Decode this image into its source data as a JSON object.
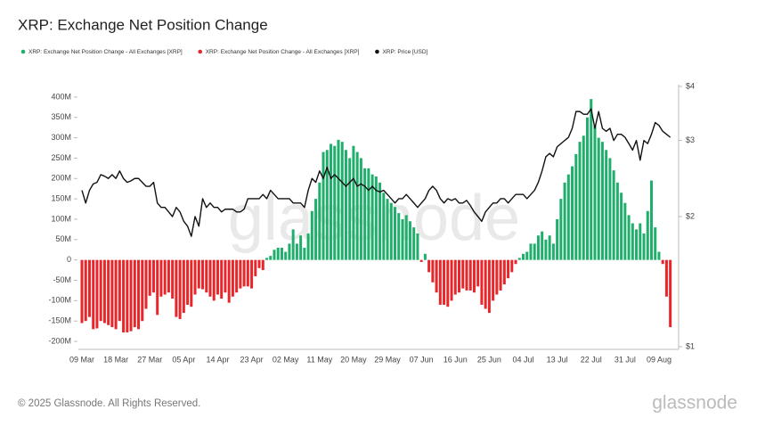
{
  "chart_data": {
    "type": "bar",
    "title": "XRP: Exchange Net Position Change",
    "watermark": "glassnode",
    "copyright": "© 2025 Glassnode. All Rights Reserved.",
    "logo": "glassnode",
    "categories": [
      "09 Mar",
      null,
      null,
      null,
      null,
      null,
      null,
      null,
      null,
      "18 Mar",
      null,
      null,
      null,
      null,
      null,
      null,
      null,
      null,
      "27 Mar",
      null,
      null,
      null,
      null,
      null,
      null,
      null,
      null,
      "05 Apr",
      null,
      null,
      null,
      null,
      null,
      null,
      null,
      null,
      "14 Apr",
      null,
      null,
      null,
      null,
      null,
      null,
      null,
      null,
      "23 Apr",
      null,
      null,
      null,
      null,
      null,
      null,
      null,
      null,
      "02 May",
      null,
      null,
      null,
      null,
      null,
      null,
      null,
      null,
      "11 May",
      null,
      null,
      null,
      null,
      null,
      null,
      null,
      null,
      "20 May",
      null,
      null,
      null,
      null,
      null,
      null,
      null,
      null,
      "29 May",
      null,
      null,
      null,
      null,
      null,
      null,
      null,
      null,
      "07 Jun",
      null,
      null,
      null,
      null,
      null,
      null,
      null,
      null,
      "16 Jun",
      null,
      null,
      null,
      null,
      null,
      null,
      null,
      null,
      "25 Jun",
      null,
      null,
      null,
      null,
      null,
      null,
      null,
      null,
      "04 Jul",
      null,
      null,
      null,
      null,
      null,
      null,
      null,
      null,
      "13 Jul",
      null,
      null,
      null,
      null,
      null,
      null,
      null,
      null,
      "22 Jul",
      null,
      null,
      null,
      null,
      null,
      null,
      null,
      null,
      "31 Jul",
      null,
      null,
      null,
      null,
      null,
      null,
      null,
      null,
      "09 Aug",
      null,
      null,
      null
    ],
    "series": [
      {
        "name": "XRP: Exchange Net Position Change - All Exchanges [XRP]",
        "color": "#1fae6c",
        "type": "bar",
        "values": [
          null,
          null,
          null,
          null,
          null,
          null,
          null,
          null,
          null,
          null,
          null,
          null,
          null,
          null,
          null,
          null,
          null,
          null,
          null,
          null,
          null,
          null,
          null,
          null,
          null,
          null,
          null,
          null,
          null,
          null,
          null,
          null,
          null,
          null,
          null,
          null,
          null,
          null,
          null,
          null,
          null,
          null,
          null,
          null,
          null,
          null,
          null,
          null,
          null,
          5,
          10,
          25,
          30,
          30,
          20,
          40,
          75,
          40,
          60,
          30,
          65,
          120,
          150,
          190,
          265,
          270,
          285,
          280,
          295,
          290,
          270,
          250,
          280,
          265,
          250,
          225,
          225,
          210,
          205,
          190,
          165,
          150,
          140,
          130,
          115,
          100,
          110,
          95,
          80,
          65,
          null,
          15,
          null,
          null,
          null,
          null,
          null,
          null,
          null,
          null,
          null,
          null,
          null,
          null,
          null,
          null,
          null,
          null,
          null,
          null,
          null,
          null,
          null,
          null,
          null,
          null,
          5,
          15,
          20,
          40,
          40,
          60,
          70,
          50,
          60,
          40,
          100,
          150,
          190,
          210,
          230,
          260,
          290,
          305,
          350,
          395,
          330,
          300,
          290,
          270,
          250,
          220,
          190,
          165,
          140,
          110,
          90,
          75,
          90,
          65,
          120,
          195,
          80,
          20,
          null,
          null,
          null
        ]
      },
      {
        "name": "XRP: Exchange Net Position Change - All Exchanges [XRP]",
        "color": "#e8262a",
        "type": "bar",
        "values": [
          -155,
          -150,
          -140,
          -170,
          -168,
          -150,
          -155,
          -160,
          -165,
          -170,
          -150,
          -178,
          -178,
          -175,
          -165,
          -170,
          -150,
          -120,
          -88,
          -80,
          -135,
          -90,
          -85,
          -80,
          -95,
          -140,
          -145,
          -130,
          -110,
          -115,
          -85,
          -70,
          -72,
          -80,
          -90,
          -100,
          -85,
          -95,
          -80,
          -105,
          -90,
          -80,
          -70,
          -65,
          -65,
          -70,
          -40,
          -20,
          -25,
          null,
          null,
          null,
          null,
          null,
          null,
          null,
          null,
          null,
          null,
          null,
          null,
          null,
          null,
          null,
          null,
          null,
          null,
          null,
          null,
          null,
          null,
          null,
          null,
          null,
          null,
          null,
          null,
          null,
          null,
          null,
          null,
          null,
          null,
          null,
          null,
          null,
          null,
          null,
          null,
          null,
          -5,
          null,
          -30,
          -55,
          -80,
          -110,
          -110,
          -115,
          -100,
          -85,
          -80,
          -70,
          -75,
          -75,
          -80,
          -65,
          -110,
          -120,
          -130,
          -100,
          -85,
          -75,
          -60,
          -45,
          -30,
          -10,
          null,
          null,
          null,
          null,
          null,
          null,
          null,
          null,
          null,
          null,
          null,
          null,
          null,
          null,
          null,
          null,
          null,
          null,
          null,
          null,
          null,
          null,
          null,
          null,
          null,
          null,
          null,
          null,
          null,
          null,
          null,
          null,
          null,
          null,
          null,
          null,
          null,
          null,
          -10,
          -90,
          -165
        ]
      },
      {
        "name": "XRP: Price [USD]",
        "color": "#111111",
        "type": "line",
        "axis": "y2",
        "values": [
          2.3,
          2.15,
          2.3,
          2.38,
          2.4,
          2.5,
          2.48,
          2.45,
          2.5,
          2.45,
          2.55,
          2.45,
          2.4,
          2.42,
          2.45,
          2.45,
          2.4,
          2.35,
          2.35,
          2.4,
          2.15,
          2.1,
          2.1,
          2.05,
          2.0,
          2.1,
          2.05,
          1.95,
          1.9,
          1.8,
          2.0,
          1.9,
          2.2,
          2.1,
          2.15,
          2.1,
          2.1,
          2.05,
          2.08,
          2.08,
          2.08,
          2.05,
          2.05,
          2.08,
          2.2,
          2.2,
          2.2,
          2.2,
          2.25,
          2.2,
          2.3,
          2.25,
          2.2,
          2.2,
          2.2,
          2.2,
          2.15,
          2.15,
          2.15,
          2.1,
          2.3,
          2.45,
          2.4,
          2.55,
          2.45,
          2.6,
          2.45,
          2.5,
          2.45,
          2.4,
          2.35,
          2.4,
          2.45,
          2.35,
          2.38,
          2.35,
          2.3,
          2.35,
          2.3,
          2.28,
          2.3,
          2.25,
          2.2,
          2.15,
          2.2,
          2.2,
          2.25,
          2.2,
          2.15,
          2.1,
          2.15,
          2.2,
          2.3,
          2.35,
          2.3,
          2.2,
          2.15,
          2.2,
          2.18,
          2.2,
          2.15,
          2.15,
          2.18,
          2.12,
          2.05,
          2.0,
          1.95,
          2.05,
          2.1,
          2.15,
          2.15,
          2.2,
          2.2,
          2.15,
          2.2,
          2.25,
          2.25,
          2.25,
          2.2,
          2.25,
          2.3,
          2.4,
          2.55,
          2.75,
          2.8,
          2.75,
          2.9,
          2.95,
          3.0,
          3.05,
          3.2,
          3.5,
          3.5,
          3.45,
          3.45,
          3.55,
          3.2,
          3.5,
          3.2,
          3.15,
          3.2,
          3.0,
          3.1,
          3.1,
          3.05,
          2.95,
          2.85,
          3.0,
          2.7,
          3.0,
          2.95,
          3.1,
          3.3,
          3.25,
          3.15,
          3.1,
          3.05
        ]
      }
    ],
    "ylim": [
      -213,
      426
    ],
    "yticks": [
      {
        "value": 400,
        "label": "400M"
      },
      {
        "value": 350,
        "label": "350M"
      },
      {
        "value": 300,
        "label": "300M"
      },
      {
        "value": 250,
        "label": "250M"
      },
      {
        "value": 200,
        "label": "200M"
      },
      {
        "value": 150,
        "label": "150M"
      },
      {
        "value": 100,
        "label": "100M"
      },
      {
        "value": 50,
        "label": "50M"
      },
      0,
      {
        "value": -50,
        "label": "-50M"
      },
      {
        "value": -100,
        "label": "-100M"
      },
      {
        "value": -150,
        "label": "-150M"
      },
      {
        "value": -200,
        "label": "-200M"
      }
    ],
    "y2lim": [
      1,
      4
    ],
    "y2log": true,
    "y2ticks": [
      {
        "value": 4,
        "label": "$4"
      },
      {
        "value": 3,
        "label": "$3"
      },
      {
        "value": 2,
        "label": "$2"
      },
      {
        "value": 1,
        "label": "$1"
      }
    ],
    "grid": false
  }
}
